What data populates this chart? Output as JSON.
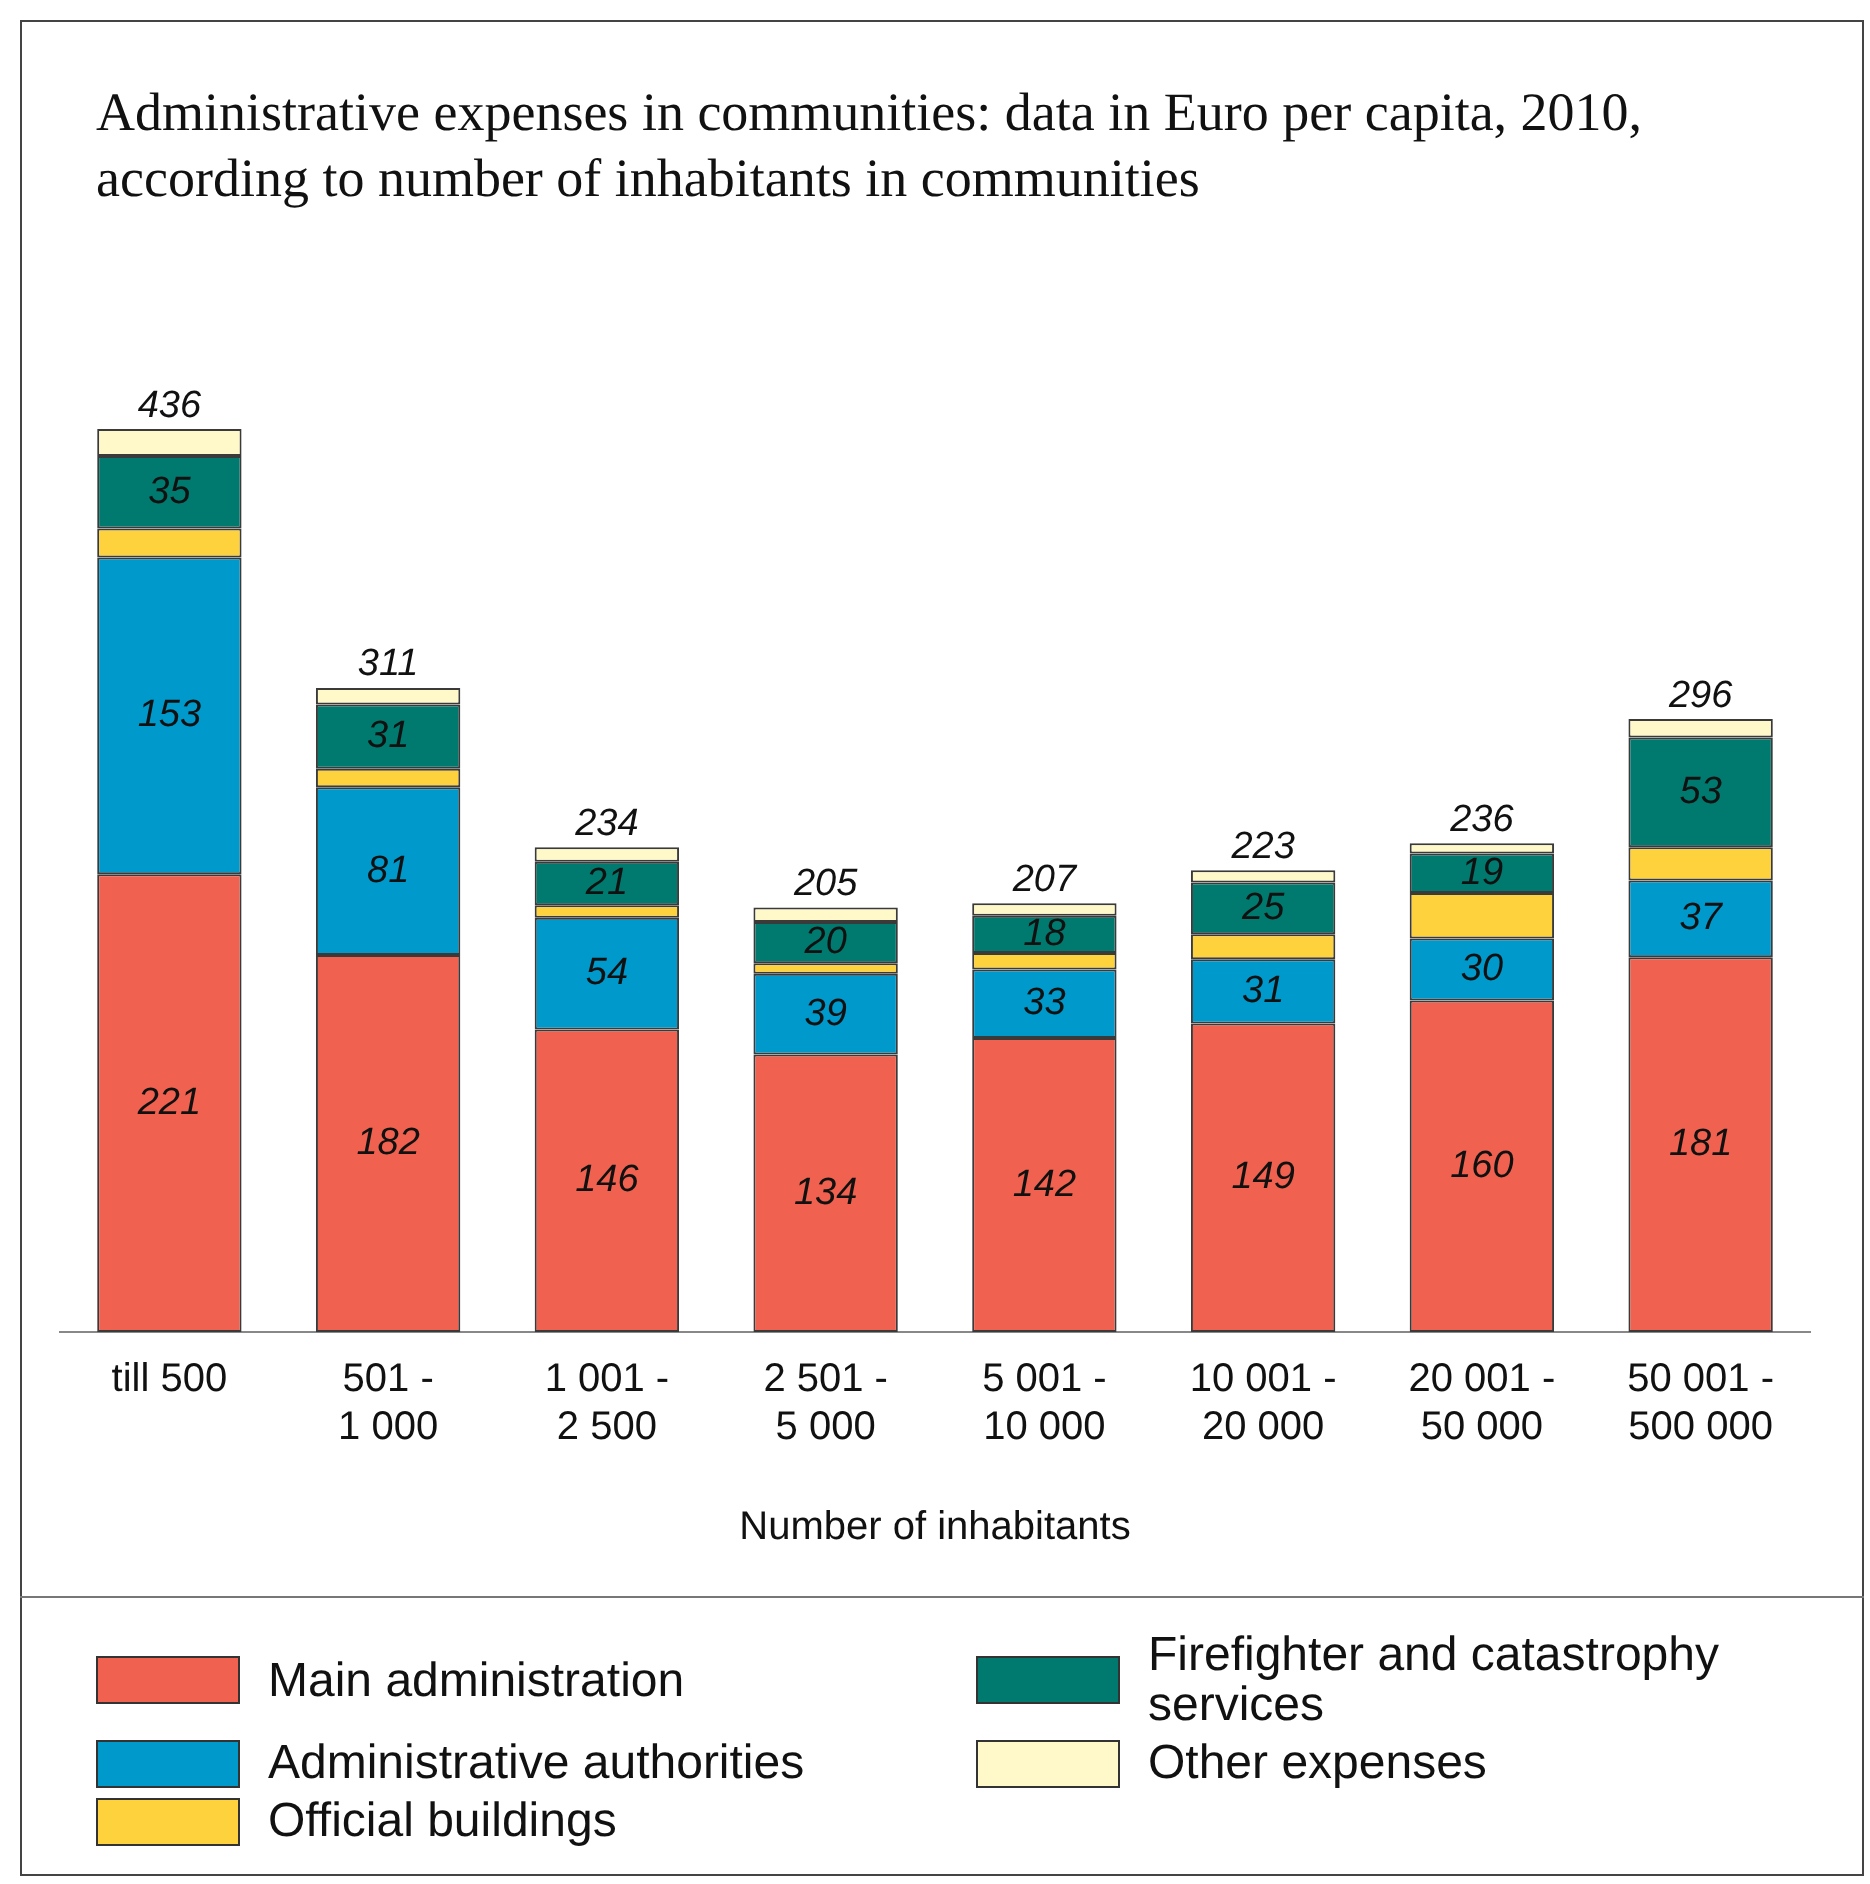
{
  "chart_data": {
    "type": "bar",
    "stacked": true,
    "title": "Administrative expenses in communities: data in Euro per capita, 2010, according to number of inhabitants in communities",
    "xlabel": "Number of inhabitants",
    "categories": [
      "till 500",
      "501 -\n1 000",
      "1 001 -\n2 500",
      "2 501 -\n5 000",
      "5 001 -\n10 000",
      "10 001 -\n20 000",
      "20 001 -\n50 000",
      "50 001 -\n500 000"
    ],
    "series": [
      {
        "name": "Main administration",
        "color": "#f0624f",
        "values": [
          221,
          182,
          146,
          134,
          142,
          149,
          160,
          181
        ],
        "value_labels": [
          "221",
          "182",
          "146",
          "134",
          "142",
          "149",
          "160",
          "181"
        ]
      },
      {
        "name": "Administrative authorities",
        "color": "#0099cc",
        "values": [
          153,
          81,
          54,
          39,
          33,
          31,
          30,
          37
        ],
        "value_labels": [
          "153",
          "81",
          "54",
          "39",
          "33",
          "31",
          "30",
          "37"
        ]
      },
      {
        "name": "Official buildings",
        "color": "#fdd23c",
        "values": [
          14,
          9,
          6,
          5,
          8,
          12,
          22,
          16
        ],
        "value_labels": [
          null,
          null,
          null,
          null,
          null,
          null,
          null,
          null
        ]
      },
      {
        "name": "Firefighter and catastrophy services",
        "color": "#007a6e",
        "values": [
          35,
          31,
          21,
          20,
          18,
          25,
          19,
          53
        ],
        "value_labels": [
          "35",
          "31",
          "21",
          "20",
          "18",
          "25",
          "19",
          "53"
        ]
      },
      {
        "name": "Other expenses",
        "color": "#fff8c8",
        "values": [
          13,
          8,
          7,
          7,
          6,
          6,
          5,
          9
        ],
        "value_labels": [
          null,
          null,
          null,
          null,
          null,
          null,
          null,
          null
        ]
      }
    ],
    "totals": [
      "436",
      "311",
      "234",
      "205",
      "207",
      "223",
      "236",
      "296"
    ],
    "grid": false,
    "legend": "bottom"
  }
}
